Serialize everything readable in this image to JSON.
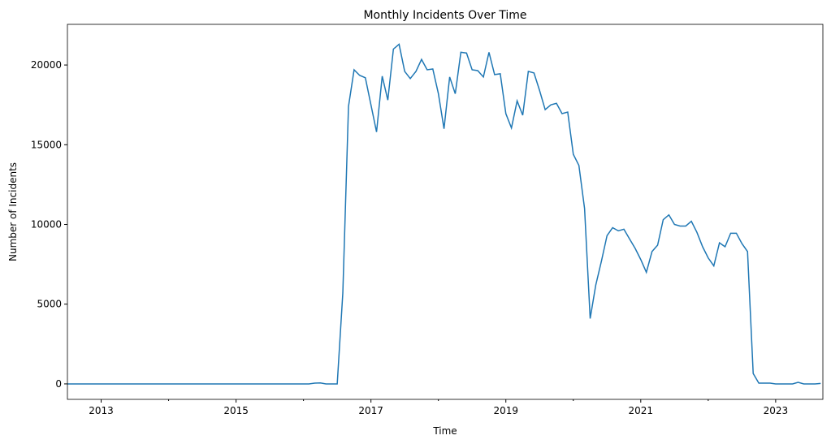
{
  "chart_data": {
    "type": "line",
    "title": "Monthly Incidents Over Time",
    "xlabel": "Time",
    "ylabel": "Number of Incidents",
    "color": "#1f77b4",
    "x": [
      2012.5,
      2012.583,
      2012.667,
      2012.75,
      2012.833,
      2012.917,
      2013,
      2013.083,
      2013.167,
      2013.25,
      2013.333,
      2013.417,
      2013.5,
      2013.583,
      2013.667,
      2013.75,
      2013.833,
      2013.917,
      2014,
      2014.083,
      2014.167,
      2014.25,
      2014.333,
      2014.417,
      2014.5,
      2014.583,
      2014.667,
      2014.75,
      2014.833,
      2014.917,
      2015,
      2015.083,
      2015.167,
      2015.25,
      2015.333,
      2015.417,
      2015.5,
      2015.583,
      2015.667,
      2015.75,
      2015.833,
      2015.917,
      2016,
      2016.083,
      2016.167,
      2016.25,
      2016.333,
      2016.417,
      2016.5,
      2016.583,
      2016.667,
      2016.75,
      2016.833,
      2016.917,
      2017,
      2017.083,
      2017.167,
      2017.25,
      2017.333,
      2017.417,
      2017.5,
      2017.583,
      2017.667,
      2017.75,
      2017.833,
      2017.917,
      2018,
      2018.083,
      2018.167,
      2018.25,
      2018.333,
      2018.417,
      2018.5,
      2018.583,
      2018.667,
      2018.75,
      2018.833,
      2018.917,
      2019,
      2019.083,
      2019.167,
      2019.25,
      2019.333,
      2019.417,
      2019.5,
      2019.583,
      2019.667,
      2019.75,
      2019.833,
      2019.917,
      2020,
      2020.083,
      2020.167,
      2020.25,
      2020.333,
      2020.417,
      2020.5,
      2020.583,
      2020.667,
      2020.75,
      2020.833,
      2020.917,
      2021,
      2021.083,
      2021.167,
      2021.25,
      2021.333,
      2021.417,
      2021.5,
      2021.583,
      2021.667,
      2021.75,
      2021.833,
      2021.917,
      2022,
      2022.083,
      2022.167,
      2022.25,
      2022.333,
      2022.417,
      2022.5,
      2022.583,
      2022.667,
      2022.75,
      2022.833,
      2022.917,
      2023,
      2023.083,
      2023.167,
      2023.25,
      2023.333,
      2023.417,
      2023.5,
      2023.583,
      2023.667
    ],
    "values": [
      0,
      0,
      0,
      0,
      0,
      0,
      0,
      0,
      0,
      0,
      0,
      0,
      0,
      0,
      0,
      0,
      0,
      0,
      0,
      0,
      0,
      0,
      0,
      0,
      0,
      0,
      0,
      0,
      0,
      0,
      0,
      0,
      0,
      0,
      0,
      0,
      0,
      0,
      0,
      0,
      0,
      0,
      0,
      0,
      50,
      60,
      0,
      0,
      0,
      5700,
      17400,
      19700,
      19350,
      19200,
      17500,
      15800,
      19300,
      17800,
      21000,
      21300,
      19600,
      19150,
      19600,
      20350,
      19700,
      19750,
      18200,
      16000,
      19250,
      18200,
      20800,
      20750,
      19700,
      19650,
      19250,
      20800,
      19400,
      19450,
      16950,
      16050,
      17750,
      16850,
      19600,
      19500,
      18400,
      17200,
      17500,
      17600,
      16950,
      17050,
      14400,
      13700,
      11000,
      4100,
      6200,
      7700,
      9300,
      9800,
      9600,
      9700,
      9100,
      8500,
      7800,
      7000,
      8300,
      8700,
      10300,
      10600,
      10000,
      9900,
      9900,
      10200,
      9500,
      8600,
      7900,
      7400,
      8850,
      8600,
      9450,
      9450,
      8800,
      8300,
      650,
      50,
      50,
      50,
      0,
      0,
      0,
      0,
      100,
      0,
      0,
      0,
      30
    ],
    "xlim": [
      2012.5,
      2023.7
    ],
    "xticks": [
      2013,
      2015,
      2017,
      2019,
      2021,
      2023
    ],
    "xminorticks": [
      2014,
      2016,
      2018,
      2020,
      2022
    ],
    "ylim": [
      -970,
      22550
    ],
    "yticks": [
      0,
      5000,
      10000,
      15000,
      20000
    ]
  }
}
